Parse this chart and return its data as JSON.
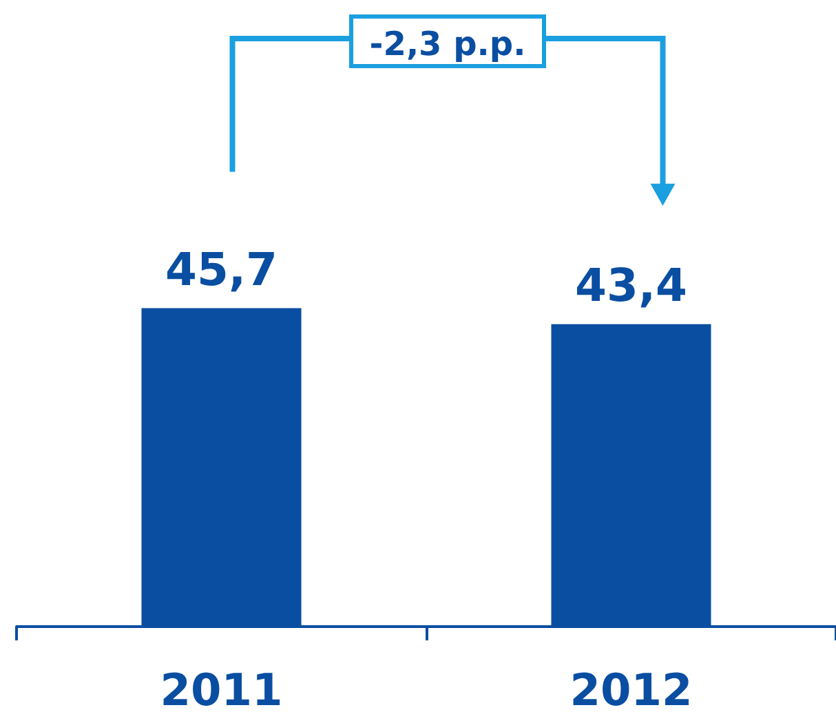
{
  "chart_data": {
    "type": "bar",
    "categories": [
      "2011",
      "2012"
    ],
    "values": [
      45.7,
      43.4
    ],
    "value_labels": [
      "45,7",
      "43,4"
    ],
    "color": "#0a4ea2",
    "tick_labels": "x",
    "grid": false,
    "annotations": [
      "-2,3 p.p."
    ]
  }
}
